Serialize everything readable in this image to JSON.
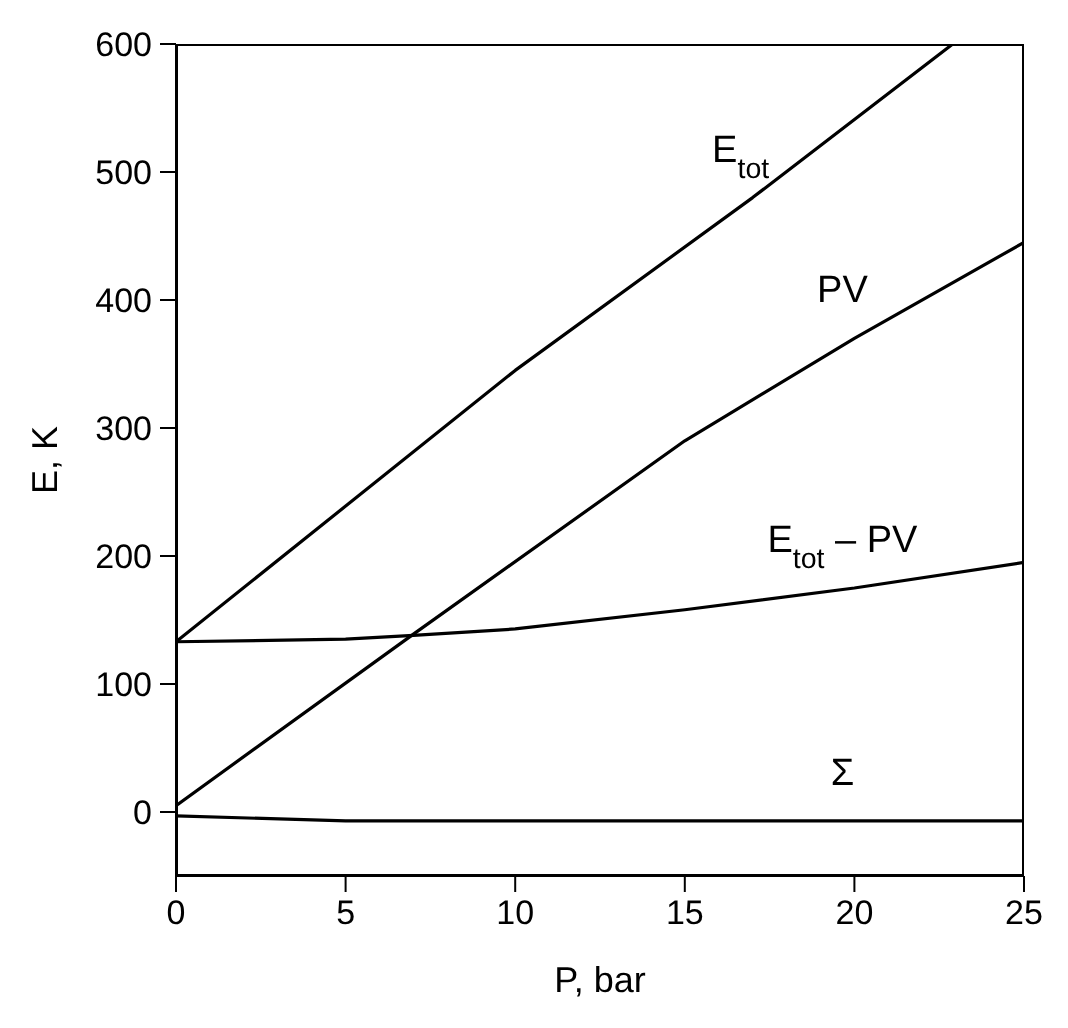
{
  "chart_data": {
    "type": "line",
    "xlabel": "P,  bar",
    "ylabel": "E, K",
    "xlim": [
      0,
      25
    ],
    "ylim": [
      -50,
      600
    ],
    "xticks": [
      0,
      5,
      10,
      15,
      20,
      25
    ],
    "yticks": [
      0,
      100,
      200,
      300,
      400,
      500,
      600
    ],
    "grid": false,
    "legend": false,
    "marker": "none",
    "line_style": "solid",
    "series": [
      {
        "name": "E$_{tot}$",
        "color": "#000000",
        "x": [
          0,
          10,
          17,
          22.9
        ],
        "values": [
          133,
          345,
          480,
          600
        ]
      },
      {
        "name": "PV",
        "color": "#000000",
        "x": [
          0,
          7,
          15,
          20,
          25
        ],
        "values": [
          5,
          139,
          290,
          370,
          445
        ]
      },
      {
        "name": "E$_{tot}$ – PV",
        "color": "#000000",
        "x": [
          0,
          5,
          7,
          10,
          15,
          20,
          25
        ],
        "values": [
          133,
          135,
          138,
          143,
          158,
          175,
          195
        ]
      },
      {
        "name": "Σ",
        "color": "#000000",
        "x": [
          0,
          5,
          20,
          25
        ],
        "values": [
          -3,
          -7,
          -7,
          -7
        ]
      }
    ]
  }
}
